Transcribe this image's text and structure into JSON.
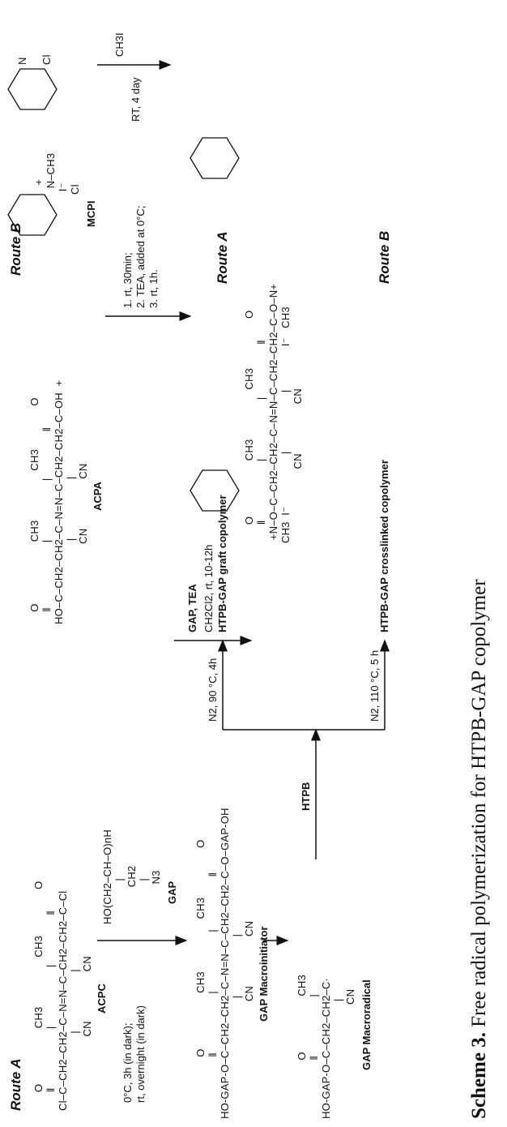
{
  "routes": {
    "route_a_top": "Route A",
    "route_b_top": "Route B",
    "route_a_side": "Route A",
    "route_b_side": "Route B"
  },
  "compounds": {
    "acpc_label": "ACPC",
    "acpc_structure": "      O                  CH3                CH3               O\n      ‖                   |                   |                ‖\nCl–C–CH2–CH2–C–N=N–C–CH2–CH2–C–Cl\n                         |                   |\n                        CN                CN",
    "gap_label": "GAP",
    "gap_structure": "HO(CH2–CH–O)nH\n              |\n            CH2\n              |\n             N3",
    "macroinitiator_label": "GAP Macroinitiator",
    "macroinitiator_structure": "                    O                  CH3                 CH3                O\n                    ‖                   |                   |                 ‖\nHO-GAP-O–C–CH2–CH2–C–N=N–C–CH2–CH2–C–O–GAP-OH\n                                       |                   |\n                                      CN                CN",
    "macroradical_label": "GAP Macroradical",
    "macroradical_structure": "                   O                  CH3\n                   ‖                   |\nHO-GAP-O–C–CH2–CH2–C·\n                                      |\n                                     CN",
    "acpa_label": "ACPA",
    "acpa_structure": "    O                    CH3                CH3              O\n    ‖                     |                   |               ‖\nHO–C–CH2–CH2–C–N=N–C–CH2–CH2–C–OH  +\n                           |                   |\n                          CN                CN",
    "mcpi_label": "MCPI",
    "mcpi_structure": "   +\n  N–CH3\n I⁻\nCl",
    "chloropyridine": "N\n\nCl",
    "ester_structure": "      O                  CH3                CH3                O\n      ‖                   |                   |                 ‖\n +N–O–C–CH2–CH2–C–N=N–C–CH2–CH2–C–O–N+\nCH3  I⁻                 |                   |              I⁻   CH3\n                        CN                CN",
    "htpb_label": "HTPB",
    "graft_label": "HTPB-GAP graft copolymer",
    "crosslinked_label": "HTPB-GAP crosslinked copolymer"
  },
  "conditions": {
    "step_a1": "0°C, 3h (in dark);\nrt, overnight (in dark)",
    "step_b0_top": "CH3I",
    "step_b0_bottom": "RT, 4 day",
    "step_b1": "1. rt, 30min;\n2. TEA, added at 0°C;\n3. rt, 1h.",
    "step_b2_top": "GAP, TEA",
    "step_b2_bottom": "CH2Cl2, rt, 10-12h",
    "graft_cond": "N2, 90 °C, 4h",
    "crosslink_cond": "N2, 110 °C, 5 h"
  },
  "caption": {
    "label": "Scheme 3.",
    "text": "Free radical polymerization for HTPB-GAP copolymer"
  }
}
